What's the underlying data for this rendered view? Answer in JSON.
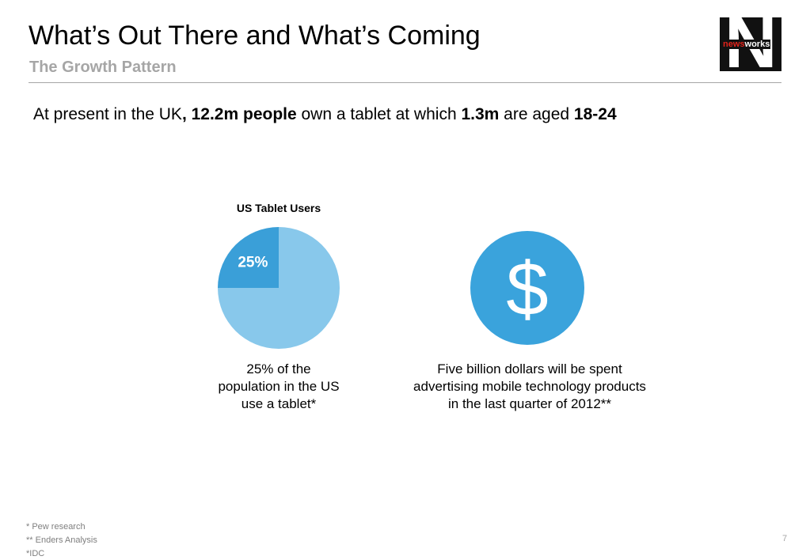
{
  "header": {
    "title": "What’s Out There and What’s Coming",
    "subtitle": "The Growth Pattern"
  },
  "logo": {
    "letter": "N",
    "prefix": "news",
    "suffix": "works"
  },
  "headline": [
    {
      "text": "At present in the UK",
      "bold": false
    },
    {
      "text": ", 12.2m people",
      "bold": true
    },
    {
      "text": " own a tablet at which ",
      "bold": false
    },
    {
      "text": "1.3m",
      "bold": true
    },
    {
      "text": " are aged ",
      "bold": false
    },
    {
      "text": "18-24",
      "bold": true
    }
  ],
  "chart_data": {
    "type": "pie",
    "title": "US Tablet Users",
    "values": [
      25,
      75
    ],
    "value_labels": [
      "25%",
      null
    ],
    "colors": [
      "#3a9fd8",
      "#88c8eb"
    ]
  },
  "captions": {
    "pie": "25% of the population in the US use a tablet*",
    "dollar": "Five billion dollars will be spent advertising mobile technology products in the last quarter of 2012**"
  },
  "dollar_icon": {
    "symbol": "$",
    "color": "#3aa3dc"
  },
  "footnotes": [
    "* Pew research",
    "** Enders Analysis",
    "*IDC"
  ],
  "page_number": "7"
}
